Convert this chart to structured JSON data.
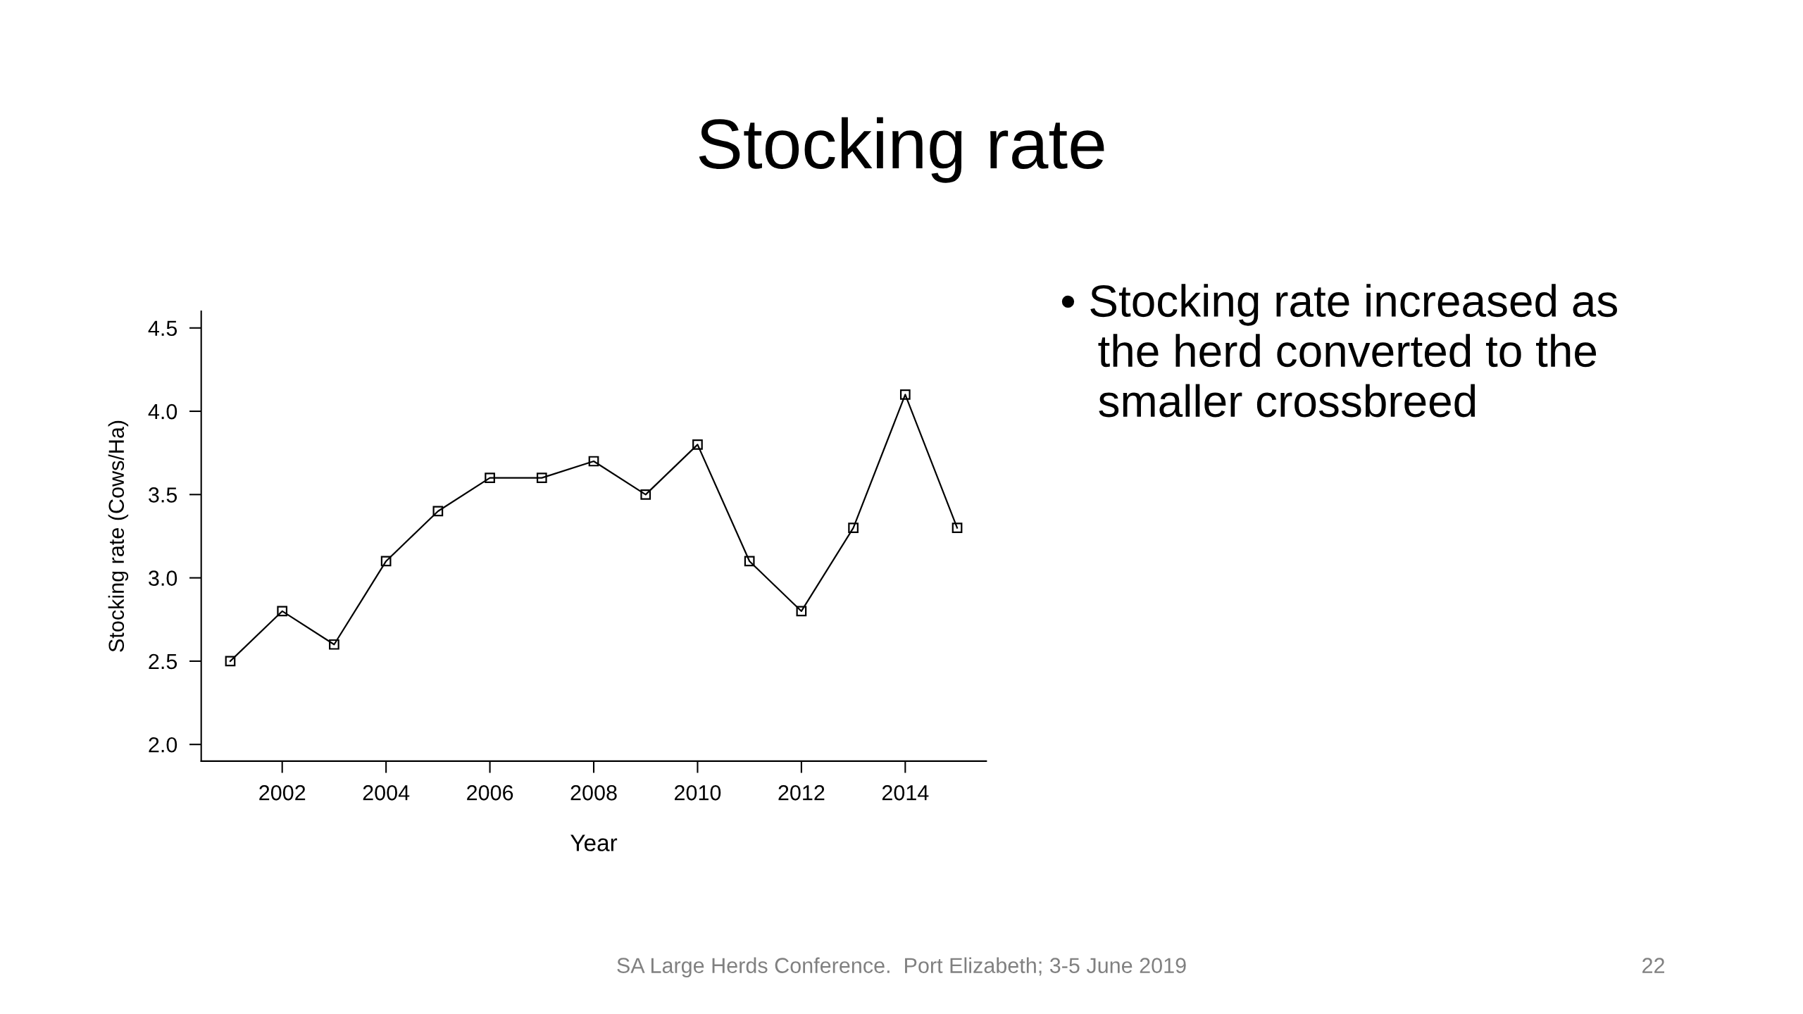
{
  "chart_data": {
    "type": "line",
    "title": "Stocking rate",
    "xlabel": "Year",
    "ylabel": "Stocking rate (Cows/Ha)",
    "x": [
      2001,
      2002,
      2003,
      2004,
      2005,
      2006,
      2007,
      2008,
      2009,
      2010,
      2011,
      2012,
      2013,
      2014,
      2015
    ],
    "series": [
      {
        "color": "#000000",
        "values": [
          2.5,
          2.8,
          2.6,
          3.1,
          3.4,
          3.6,
          3.6,
          3.7,
          3.5,
          3.8,
          3.1,
          2.8,
          3.3,
          4.1,
          3.3
        ]
      }
    ],
    "xlim": [
      2000.44,
      2015.56
    ],
    "xticks": [
      2002,
      2004,
      2006,
      2008,
      2010,
      2012,
      2014
    ],
    "ylim": [
      1.9,
      4.6
    ],
    "yticks": [
      {
        "value": 2,
        "label": "2.0"
      },
      {
        "value": 2.5,
        "label": "2.5"
      },
      {
        "value": 3,
        "label": "3.0"
      },
      {
        "value": 3.5,
        "label": "3.5"
      },
      {
        "value": 4,
        "label": "4.0"
      },
      {
        "value": 4.5,
        "label": "4.5"
      }
    ],
    "marker": "square",
    "line_style": "solid",
    "grid": false,
    "legend": false,
    "annotations": [
      "• Stocking rate increased as\n   the herd converted to the\n   smaller crossbreed",
      "SA Large Herds Conference.  Port Elizabeth; 3-5 June 2019",
      "22"
    ]
  }
}
